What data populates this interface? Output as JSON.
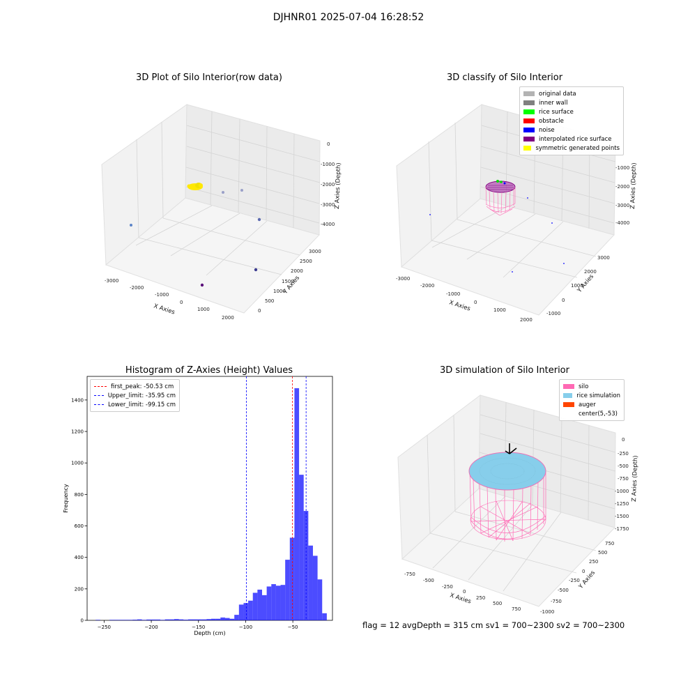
{
  "figure": {
    "suptitle": "DJHNR01 2025-07-04 16:28:52"
  },
  "panels": {
    "raw": {
      "title": "3D Plot of Silo Interior(row data)",
      "xlabel": "X Axies",
      "ylabel": "Y Axies",
      "zlabel": "Z Axies (Depth)",
      "xticks": [
        "-3000",
        "-2000",
        "-1000",
        "0",
        "1000",
        "2000"
      ],
      "yticks": [
        "0",
        "500",
        "1000",
        "1500",
        "2000",
        "2500",
        "3000"
      ],
      "zticks": [
        "0",
        "-1000",
        "-2000",
        "-3000",
        "-4000"
      ]
    },
    "classify": {
      "title": "3D classify of Silo Interior",
      "xlabel": "X Axies",
      "ylabel": "Y Axies",
      "zlabel": "Z Axies (Depth)",
      "xticks": [
        "-3000",
        "-2000",
        "-1000",
        "0",
        "1000",
        "2000"
      ],
      "yticks": [
        "-1000",
        "0",
        "1000",
        "2000",
        "3000"
      ],
      "zticks": [
        "0",
        "-1000",
        "-2000",
        "-3000",
        "-4000"
      ],
      "legend": [
        {
          "label": "original data",
          "color": "#b3b3b3"
        },
        {
          "label": "inner wall",
          "color": "#808080"
        },
        {
          "label": "rice surface",
          "color": "#00ff00"
        },
        {
          "label": "obstacle",
          "color": "#ff0000"
        },
        {
          "label": "noise",
          "color": "#0000ff"
        },
        {
          "label": "interpolated rice surface",
          "color": "#800080"
        },
        {
          "label": "symmetric generated points",
          "color": "#ffff00"
        }
      ]
    },
    "histogram": {
      "title": "Histogram of Z-Axies (Height) Values",
      "xlabel": "Depth (cm)",
      "ylabel": "Frequency",
      "legend": [
        {
          "label": "first_peak: -50.53 cm",
          "color": "#ff0000"
        },
        {
          "label": "Upper_limit: -35.95 cm",
          "color": "#0000ff"
        },
        {
          "label": "Lower_limit: -99.15 cm",
          "color": "#0000ff"
        }
      ]
    },
    "simulation": {
      "title": "3D simulation of Silo Interior",
      "xlabel": "X Axies",
      "ylabel": "Y Axies",
      "zlabel": "Z Axies (Depth)",
      "xticks": [
        "-750",
        "-500",
        "-250",
        "0",
        "250",
        "500",
        "750"
      ],
      "yticks": [
        "-1000",
        "-750",
        "-500",
        "-250",
        "0",
        "250",
        "500",
        "750"
      ],
      "zticks": [
        "0",
        "-250",
        "-500",
        "-750",
        "-1000",
        "-1250",
        "-1500",
        "-1750"
      ],
      "legend": [
        {
          "label": "silo",
          "color": "#ff69b4"
        },
        {
          "label": "rice simulation",
          "color": "#87ceeb"
        },
        {
          "label": "auger",
          "color": "#ff4500"
        },
        {
          "label": "center(5,-53)",
          "color": "#ffffff"
        }
      ]
    }
  },
  "footer": {
    "text": "flag = 12   avgDepth = 315 cm   sv1 = 700~2300   sv2 = 700~2300"
  },
  "chart_data": {
    "type": "bar",
    "title": "Histogram of Z-Axies (Height) Values",
    "xlabel": "Depth (cm)",
    "ylabel": "Frequency",
    "xlim": [
      -268,
      -8
    ],
    "ylim": [
      0,
      1550
    ],
    "xticks": [
      -250,
      -200,
      -150,
      -100,
      -50
    ],
    "yticks": [
      0,
      200,
      400,
      600,
      800,
      1000,
      1200,
      1400
    ],
    "bin_width": 4.9,
    "bin_starts": [
      -259,
      -254.1,
      -249.2,
      -244.3,
      -239.4,
      -234.5,
      -229.6,
      -224.7,
      -219.8,
      -214.9,
      -210,
      -205.1,
      -200.2,
      -195.3,
      -190.4,
      -185.5,
      -180.6,
      -175.7,
      -170.8,
      -165.9,
      -161,
      -156.1,
      -151.2,
      -146.3,
      -141.4,
      -136.5,
      -131.6,
      -126.7,
      -121.8,
      -116.9,
      -112,
      -107.1,
      -102.2,
      -97.3,
      -92.4,
      -87.5,
      -82.6,
      -77.7,
      -72.8,
      -67.9,
      -63,
      -58.1,
      -53.2,
      -48.3,
      -43.4,
      -38.5,
      -33.6,
      -28.7,
      -23.8,
      -18.9
    ],
    "counts": [
      3,
      0,
      0,
      3,
      3,
      3,
      3,
      3,
      4,
      6,
      3,
      5,
      5,
      5,
      3,
      6,
      6,
      8,
      6,
      4,
      6,
      6,
      6,
      6,
      8,
      10,
      10,
      18,
      15,
      10,
      35,
      100,
      110,
      125,
      175,
      195,
      160,
      215,
      230,
      220,
      225,
      385,
      525,
      1475,
      925,
      695,
      475,
      410,
      260,
      45
    ],
    "vlines": [
      {
        "name": "first_peak",
        "x": -50.53,
        "color": "#ff0000"
      },
      {
        "name": "Upper_limit",
        "x": -35.95,
        "color": "#0000ff"
      },
      {
        "name": "Lower_limit",
        "x": -99.15,
        "color": "#0000ff"
      }
    ],
    "bar_color": "#0000ff"
  }
}
